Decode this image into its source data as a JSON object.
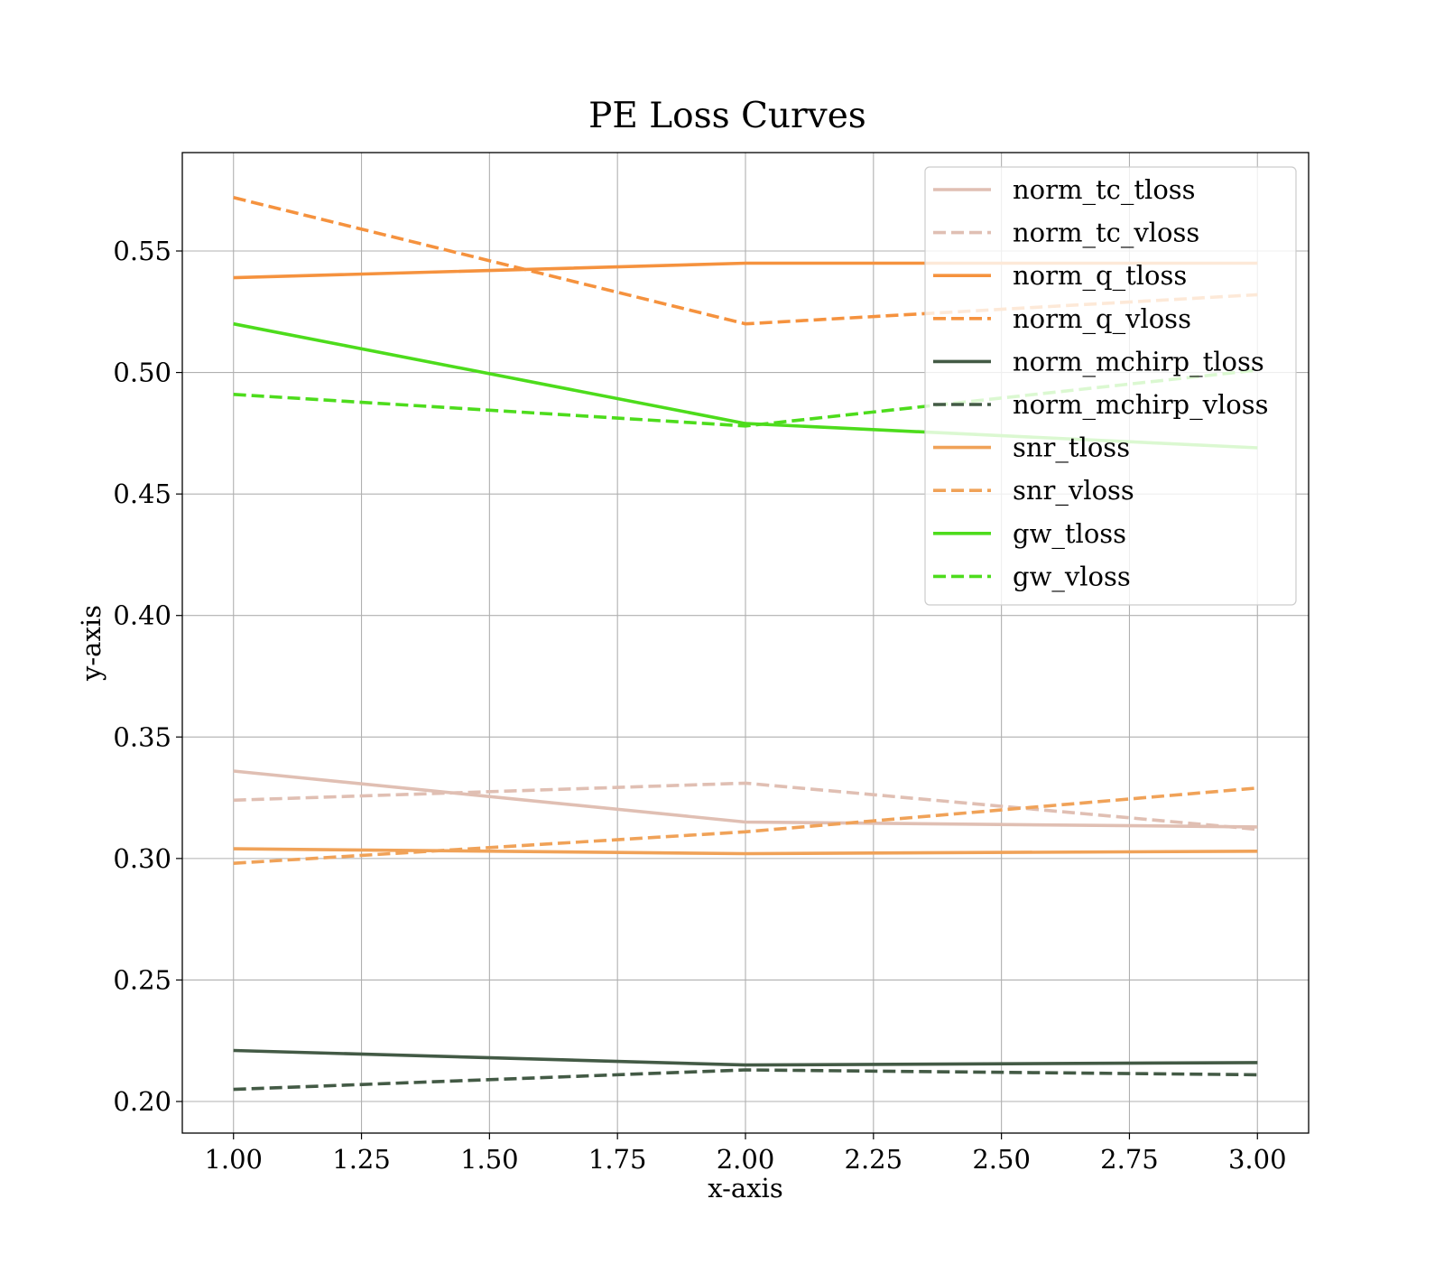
{
  "chart_data": {
    "type": "line",
    "title": "PE Loss Curves",
    "xlabel": "x-axis",
    "ylabel": "y-axis",
    "xlim": [
      0.9,
      3.1
    ],
    "ylim": [
      0.187,
      0.5905
    ],
    "xticks": [
      1.0,
      1.25,
      1.5,
      1.75,
      2.0,
      2.25,
      2.5,
      2.75,
      3.0
    ],
    "xtick_labels": [
      "1.00",
      "1.25",
      "1.50",
      "1.75",
      "2.00",
      "2.25",
      "2.50",
      "2.75",
      "3.00"
    ],
    "yticks": [
      0.2,
      0.25,
      0.3,
      0.35,
      0.4,
      0.45,
      0.5,
      0.55
    ],
    "ytick_labels": [
      "0.20",
      "0.25",
      "0.30",
      "0.35",
      "0.40",
      "0.45",
      "0.50",
      "0.55"
    ],
    "grid": true,
    "legend_position": "top-right",
    "x": [
      1.0,
      2.0,
      3.0
    ],
    "series": [
      {
        "name": "norm_tc_tloss",
        "values": [
          0.336,
          0.315,
          0.313
        ],
        "color": "#e0bfb3",
        "dash": "solid"
      },
      {
        "name": "norm_tc_vloss",
        "values": [
          0.324,
          0.331,
          0.312
        ],
        "color": "#e0bfb3",
        "dash": "dashed"
      },
      {
        "name": "norm_q_tloss",
        "values": [
          0.539,
          0.545,
          0.545
        ],
        "color": "#f5923e",
        "dash": "solid"
      },
      {
        "name": "norm_q_vloss",
        "values": [
          0.572,
          0.52,
          0.532
        ],
        "color": "#f5923e",
        "dash": "dashed"
      },
      {
        "name": "norm_mchirp_tloss",
        "values": [
          0.221,
          0.215,
          0.216
        ],
        "color": "#435a45",
        "dash": "solid"
      },
      {
        "name": "norm_mchirp_vloss",
        "values": [
          0.205,
          0.213,
          0.211
        ],
        "color": "#435a45",
        "dash": "dashed"
      },
      {
        "name": "snr_tloss",
        "values": [
          0.304,
          0.302,
          0.303
        ],
        "color": "#f0a258",
        "dash": "solid"
      },
      {
        "name": "snr_vloss",
        "values": [
          0.298,
          0.311,
          0.329
        ],
        "color": "#f0a258",
        "dash": "dashed"
      },
      {
        "name": "gw_tloss",
        "values": [
          0.52,
          0.479,
          0.469
        ],
        "color": "#4ddc1c",
        "dash": "solid"
      },
      {
        "name": "gw_vloss",
        "values": [
          0.491,
          0.478,
          0.501
        ],
        "color": "#4ddc1c",
        "dash": "dashed"
      }
    ]
  }
}
